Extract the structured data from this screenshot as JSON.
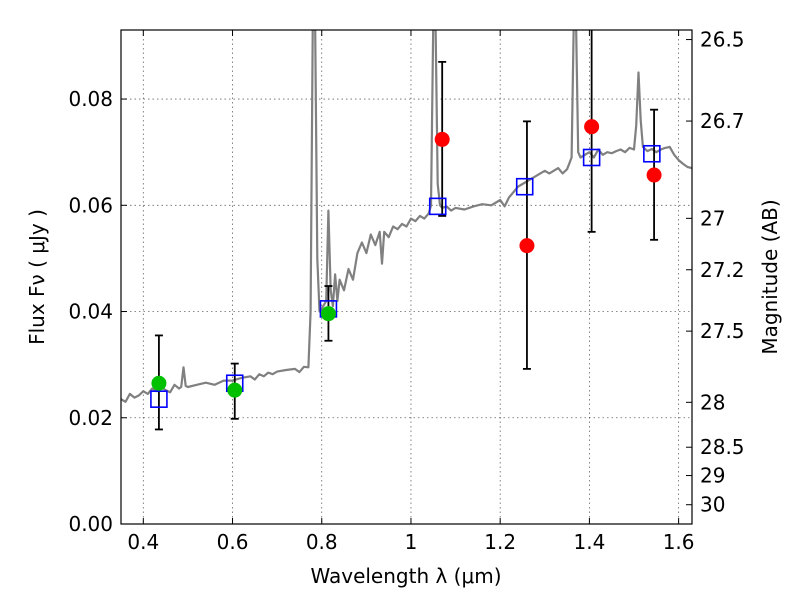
{
  "chart_data": {
    "type": "scatter",
    "xlabel": "Wavelength  λ (μm)",
    "ylabel": "Flux  Fν  ( μJy )",
    "ylabel_right": "Magnitude (AB)",
    "xlim": [
      0.35,
      1.63
    ],
    "ylim": [
      0.0,
      0.093
    ],
    "grid": true,
    "x_ticks": [
      {
        "value": 0.4,
        "label": "0.4"
      },
      {
        "value": 0.6,
        "label": "0.6"
      },
      {
        "value": 0.8,
        "label": "0.8"
      },
      {
        "value": 1.0,
        "label": "1"
      },
      {
        "value": 1.2,
        "label": "1.2"
      },
      {
        "value": 1.4,
        "label": "1.4"
      },
      {
        "value": 1.6,
        "label": "1.6"
      }
    ],
    "y_ticks": [
      {
        "value": 0.0,
        "label": "0.00"
      },
      {
        "value": 0.02,
        "label": "0.02"
      },
      {
        "value": 0.04,
        "label": "0.04"
      },
      {
        "value": 0.06,
        "label": "0.06"
      },
      {
        "value": 0.08,
        "label": "0.08"
      }
    ],
    "right_ticks": [
      {
        "mag": 26.5,
        "label": "26.5"
      },
      {
        "mag": 26.7,
        "label": "26.7"
      },
      {
        "mag": 27.0,
        "label": "27"
      },
      {
        "mag": 27.2,
        "label": "27.2"
      },
      {
        "mag": 27.5,
        "label": "27.5"
      },
      {
        "mag": 28.0,
        "label": "28"
      },
      {
        "mag": 28.5,
        "label": "28.5"
      },
      {
        "mag": 29.0,
        "label": "29"
      },
      {
        "mag": 30.0,
        "label": "30"
      }
    ],
    "model_spectrum": {
      "color": "#808080",
      "points": [
        [
          0.35,
          0.0235
        ],
        [
          0.36,
          0.023
        ],
        [
          0.37,
          0.0245
        ],
        [
          0.38,
          0.0238
        ],
        [
          0.39,
          0.0242
        ],
        [
          0.4,
          0.025
        ],
        [
          0.41,
          0.0245
        ],
        [
          0.42,
          0.0255
        ],
        [
          0.43,
          0.025
        ],
        [
          0.44,
          0.0258
        ],
        [
          0.45,
          0.0252
        ],
        [
          0.46,
          0.0248
        ],
        [
          0.47,
          0.0262
        ],
        [
          0.48,
          0.0255
        ],
        [
          0.485,
          0.0258
        ],
        [
          0.49,
          0.0295
        ],
        [
          0.495,
          0.026
        ],
        [
          0.5,
          0.0258
        ],
        [
          0.52,
          0.0262
        ],
        [
          0.54,
          0.0266
        ],
        [
          0.56,
          0.0262
        ],
        [
          0.58,
          0.027
        ],
        [
          0.6,
          0.027
        ],
        [
          0.62,
          0.0275
        ],
        [
          0.64,
          0.0278
        ],
        [
          0.65,
          0.0272
        ],
        [
          0.66,
          0.0282
        ],
        [
          0.67,
          0.0278
        ],
        [
          0.68,
          0.0285
        ],
        [
          0.69,
          0.0282
        ],
        [
          0.7,
          0.0287
        ],
        [
          0.72,
          0.029
        ],
        [
          0.74,
          0.0292
        ],
        [
          0.75,
          0.0286
        ],
        [
          0.76,
          0.0296
        ],
        [
          0.77,
          0.0295
        ],
        [
          0.775,
          0.04
        ],
        [
          0.78,
          0.095
        ],
        [
          0.785,
          0.095
        ],
        [
          0.79,
          0.05
        ],
        [
          0.795,
          0.04
        ],
        [
          0.8,
          0.0405
        ],
        [
          0.81,
          0.042
        ],
        [
          0.815,
          0.059
        ],
        [
          0.82,
          0.044
        ],
        [
          0.825,
          0.041
        ],
        [
          0.83,
          0.047
        ],
        [
          0.835,
          0.042
        ],
        [
          0.84,
          0.046
        ],
        [
          0.85,
          0.044
        ],
        [
          0.86,
          0.048
        ],
        [
          0.87,
          0.046
        ],
        [
          0.88,
          0.051
        ],
        [
          0.89,
          0.053
        ],
        [
          0.9,
          0.051
        ],
        [
          0.91,
          0.0545
        ],
        [
          0.92,
          0.0525
        ],
        [
          0.93,
          0.055
        ],
        [
          0.935,
          0.049
        ],
        [
          0.94,
          0.055
        ],
        [
          0.95,
          0.054
        ],
        [
          0.96,
          0.056
        ],
        [
          0.97,
          0.0555
        ],
        [
          0.98,
          0.0565
        ],
        [
          0.99,
          0.056
        ],
        [
          1.0,
          0.0575
        ],
        [
          1.01,
          0.057
        ],
        [
          1.02,
          0.058
        ],
        [
          1.03,
          0.0575
        ],
        [
          1.04,
          0.0585
        ],
        [
          1.045,
          0.06
        ],
        [
          1.05,
          0.095
        ],
        [
          1.055,
          0.095
        ],
        [
          1.06,
          0.064
        ],
        [
          1.065,
          0.06
        ],
        [
          1.07,
          0.0595
        ],
        [
          1.08,
          0.0598
        ],
        [
          1.09,
          0.059
        ],
        [
          1.1,
          0.0595
        ],
        [
          1.12,
          0.0592
        ],
        [
          1.14,
          0.0598
        ],
        [
          1.16,
          0.0602
        ],
        [
          1.18,
          0.06
        ],
        [
          1.2,
          0.061
        ],
        [
          1.21,
          0.0598
        ],
        [
          1.22,
          0.0615
        ],
        [
          1.23,
          0.0625
        ],
        [
          1.24,
          0.0635
        ],
        [
          1.25,
          0.064
        ],
        [
          1.26,
          0.0645
        ],
        [
          1.27,
          0.065
        ],
        [
          1.28,
          0.0655
        ],
        [
          1.29,
          0.066
        ],
        [
          1.3,
          0.0665
        ],
        [
          1.31,
          0.066
        ],
        [
          1.32,
          0.0665
        ],
        [
          1.33,
          0.067
        ],
        [
          1.34,
          0.066
        ],
        [
          1.35,
          0.0668
        ],
        [
          1.36,
          0.069
        ],
        [
          1.365,
          0.095
        ],
        [
          1.37,
          0.095
        ],
        [
          1.375,
          0.07
        ],
        [
          1.38,
          0.069
        ],
        [
          1.39,
          0.0695
        ],
        [
          1.4,
          0.07
        ],
        [
          1.41,
          0.069
        ],
        [
          1.42,
          0.0705
        ],
        [
          1.43,
          0.0695
        ],
        [
          1.44,
          0.07
        ],
        [
          1.45,
          0.0698
        ],
        [
          1.46,
          0.0702
        ],
        [
          1.47,
          0.0705
        ],
        [
          1.48,
          0.07
        ],
        [
          1.49,
          0.0708
        ],
        [
          1.5,
          0.0705
        ],
        [
          1.505,
          0.075
        ],
        [
          1.51,
          0.085
        ],
        [
          1.515,
          0.076
        ],
        [
          1.52,
          0.071
        ],
        [
          1.53,
          0.0702
        ],
        [
          1.54,
          0.0706
        ],
        [
          1.55,
          0.07
        ],
        [
          1.56,
          0.0705
        ],
        [
          1.57,
          0.0708
        ],
        [
          1.58,
          0.071
        ],
        [
          1.59,
          0.0695
        ],
        [
          1.6,
          0.0685
        ],
        [
          1.61,
          0.0678
        ],
        [
          1.62,
          0.0672
        ],
        [
          1.63,
          0.067
        ]
      ]
    },
    "series": [
      {
        "marker": "circle",
        "color": "#00c000",
        "points": [
          {
            "x": 0.435,
            "y": 0.0265,
            "yerr_low": 0.0178,
            "yerr_high": 0.0355
          },
          {
            "x": 0.605,
            "y": 0.0252,
            "yerr_low": 0.0198,
            "yerr_high": 0.0302
          },
          {
            "x": 0.815,
            "y": 0.0396,
            "yerr_low": 0.0345,
            "yerr_high": 0.0448
          }
        ]
      },
      {
        "marker": "circle",
        "color": "#ff0000",
        "points": [
          {
            "x": 1.07,
            "y": 0.0724,
            "yerr_low": 0.058,
            "yerr_high": 0.087
          },
          {
            "x": 1.26,
            "y": 0.0524,
            "yerr_low": 0.0292,
            "yerr_high": 0.0758
          },
          {
            "x": 1.405,
            "y": 0.0748,
            "yerr_low": 0.055,
            "yerr_high": 0.095
          },
          {
            "x": 1.545,
            "y": 0.0657,
            "yerr_low": 0.0535,
            "yerr_high": 0.078
          }
        ]
      },
      {
        "marker": "open-square",
        "color": "#0000ff",
        "points": [
          {
            "x": 0.435,
            "y": 0.0235
          },
          {
            "x": 0.605,
            "y": 0.0265
          },
          {
            "x": 0.815,
            "y": 0.0405
          },
          {
            "x": 1.06,
            "y": 0.0598
          },
          {
            "x": 1.255,
            "y": 0.0635
          },
          {
            "x": 1.405,
            "y": 0.069
          },
          {
            "x": 1.54,
            "y": 0.0697
          }
        ]
      }
    ]
  }
}
